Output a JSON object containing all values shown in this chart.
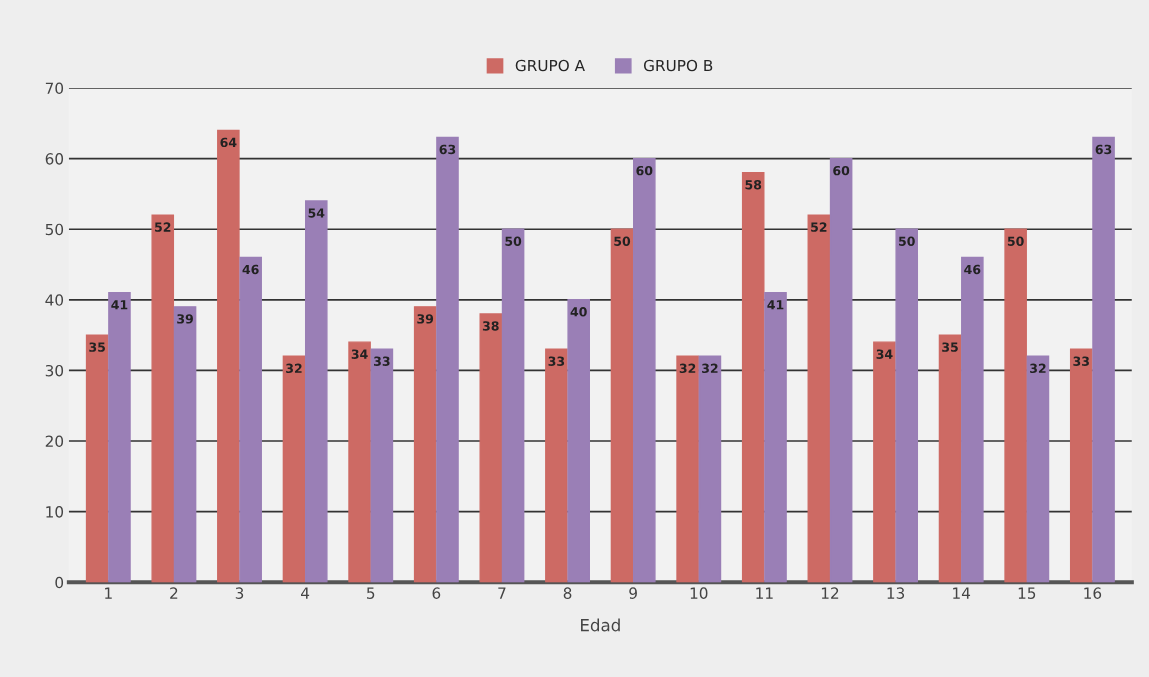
{
  "chart_data": {
    "type": "bar",
    "xlabel": "Edad",
    "categories": [
      "1",
      "2",
      "3",
      "4",
      "5",
      "6",
      "7",
      "8",
      "9",
      "10",
      "11",
      "12",
      "13",
      "14",
      "15",
      "16"
    ],
    "series": [
      {
        "name": "GRUPO A",
        "color": "#cd6a64",
        "values": [
          35,
          52,
          64,
          32,
          34,
          39,
          38,
          33,
          50,
          32,
          58,
          52,
          34,
          35,
          50,
          33
        ]
      },
      {
        "name": "GRUPO B",
        "color": "#9a7fb6",
        "values": [
          41,
          39,
          46,
          54,
          33,
          63,
          50,
          40,
          60,
          32,
          41,
          60,
          50,
          46,
          32,
          63
        ]
      }
    ],
    "ylim": [
      0,
      70
    ],
    "yticks": [
      0,
      10,
      20,
      30,
      40,
      50,
      60,
      70
    ],
    "grid": "y",
    "legend": "top",
    "data_labels": true
  }
}
